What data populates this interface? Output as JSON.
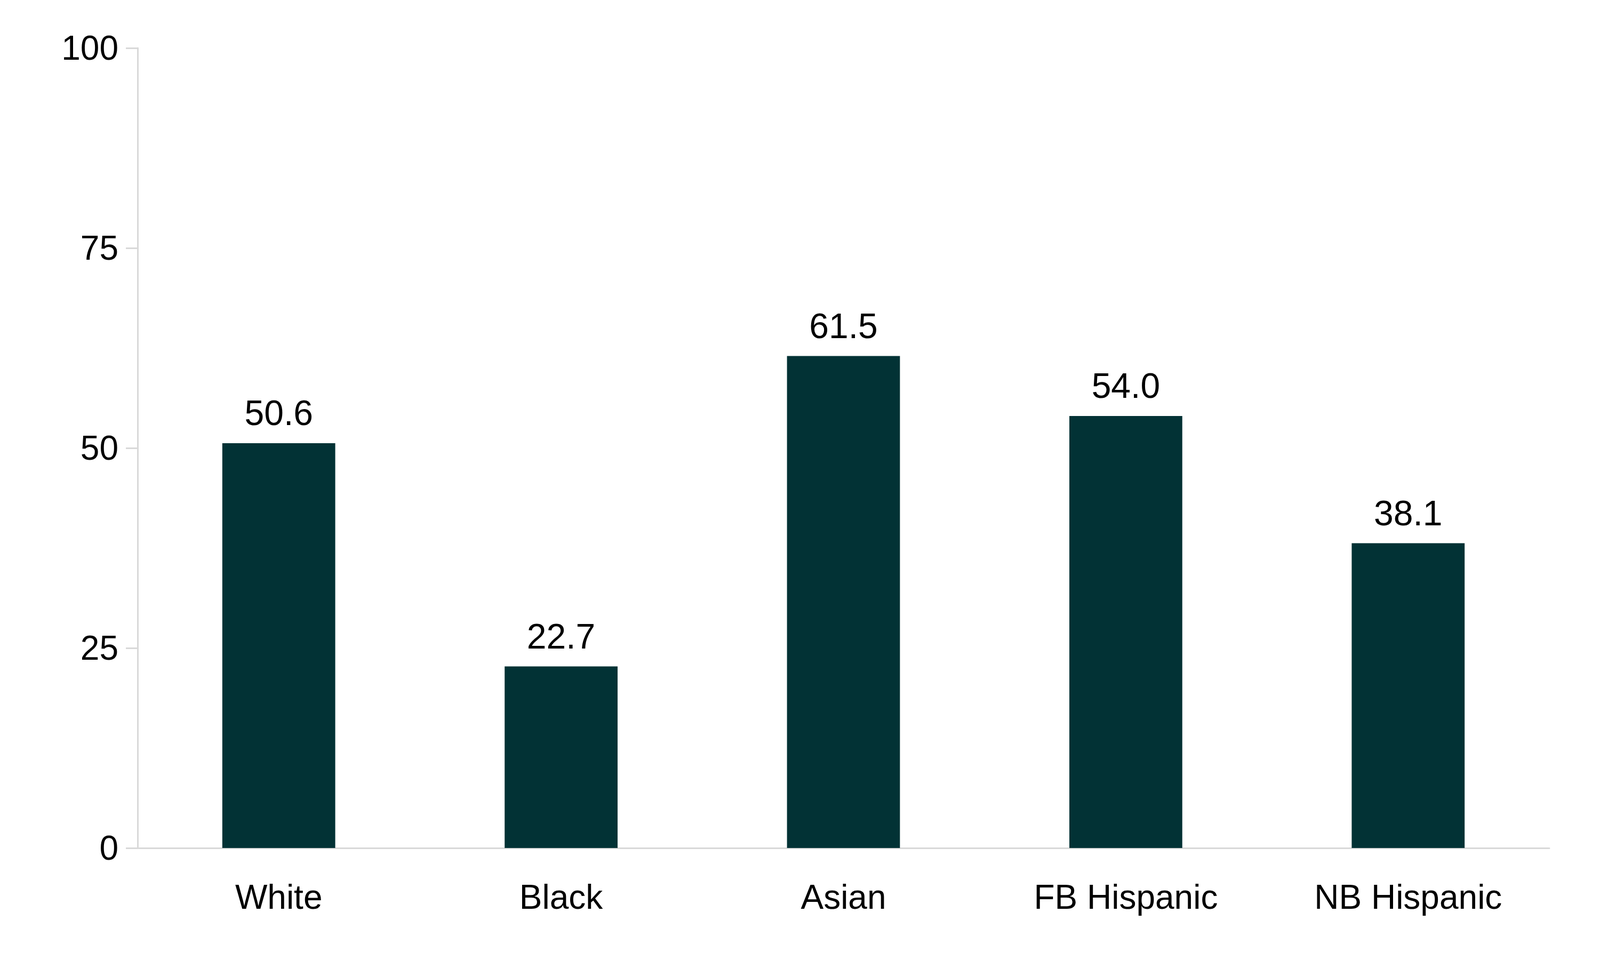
{
  "chart_data": {
    "type": "bar",
    "categories": [
      "White",
      "Black",
      "Asian",
      "FB Hispanic",
      "NB Hispanic"
    ],
    "values": [
      50.6,
      22.7,
      61.5,
      54.0,
      38.1
    ],
    "value_labels": [
      "50.6",
      "22.7",
      "61.5",
      "54.0",
      "38.1"
    ],
    "color": "#023235",
    "ylim": [
      0,
      100
    ],
    "yticks": [
      0,
      25,
      50,
      75,
      100
    ],
    "grid": false,
    "data_labels": true
  }
}
